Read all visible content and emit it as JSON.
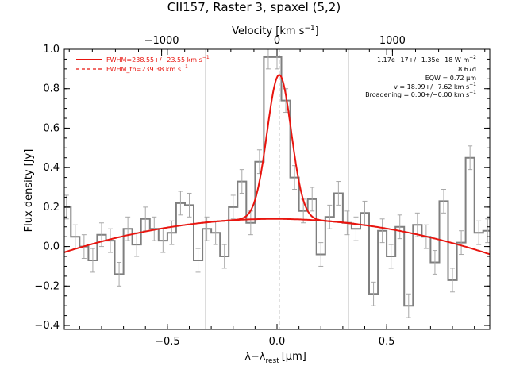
{
  "chart_data": {
    "type": "line",
    "title": "CII157, Raster 3, spaxel (5,2)",
    "xlabel": "λ−λ",
    "xlabel_sub": "rest",
    "xlabel_unit": "[μm]",
    "ylabel": "Flux density [Jy]",
    "top_axis_label": "Velocity [km s",
    "top_axis_label_sup": "−1",
    "top_axis_label_end": "]",
    "xlim": [
      -0.97,
      0.97
    ],
    "ylim": [
      -0.42,
      1.0
    ],
    "x_ticks": [
      -0.5,
      0.0,
      0.5
    ],
    "x_tick_labels": [
      "−0.5",
      "0.0",
      "0.5"
    ],
    "y_ticks": [
      -0.4,
      -0.2,
      0.0,
      0.2,
      0.4,
      0.6,
      0.8,
      1.0
    ],
    "y_tick_labels": [
      "−0.4",
      "−0.2",
      "0.0",
      "0.2",
      "0.4",
      "0.6",
      "0.8",
      "1.0"
    ],
    "top_ticks_kms": [
      -1000,
      0,
      1000
    ],
    "top_tick_labels": [
      "−1000",
      "0",
      "1000"
    ],
    "km_s_per_um": 1900,
    "vlines_x": [
      -0.325,
      0.325
    ],
    "dashed_vline_x": 0.01,
    "legend": {
      "position": "top-left",
      "entries": [
        {
          "label": "FWHM=238.55+/−23.55 km s",
          "sup": "−1",
          "style": "solid",
          "color": "#e8150f"
        },
        {
          "label": "FWHM_th=239.38 km s",
          "sup": "−1",
          "style": "dashed",
          "color": "#e8150f"
        }
      ]
    },
    "annotations": {
      "position": "top-right",
      "lines": [
        {
          "text": "1.17e−17+/−1.35e−18 W m",
          "sup": "−2"
        },
        {
          "text": "8.67σ",
          "sup": ""
        },
        {
          "text": "EQW = 0.72 μm",
          "sup": ""
        },
        {
          "text": "v = 18.99+/−7.62 km s",
          "sup": "−1"
        },
        {
          "text": "Broadening = 0.00+/−0.00 km s",
          "sup": "−1"
        }
      ]
    },
    "colors": {
      "data": "#7f7f7f",
      "fit": "#e8150f",
      "axes": "#000000"
    },
    "spectrum": {
      "style": "histogram-step",
      "x": [
        -0.96,
        -0.92,
        -0.88,
        -0.84,
        -0.8,
        -0.76,
        -0.72,
        -0.68,
        -0.64,
        -0.6,
        -0.56,
        -0.52,
        -0.48,
        -0.44,
        -0.4,
        -0.36,
        -0.32,
        -0.28,
        -0.24,
        -0.2,
        -0.16,
        -0.12,
        -0.08,
        -0.04,
        0.0,
        0.04,
        0.08,
        0.12,
        0.16,
        0.2,
        0.24,
        0.28,
        0.32,
        0.36,
        0.4,
        0.44,
        0.48,
        0.52,
        0.56,
        0.6,
        0.64,
        0.68,
        0.72,
        0.76,
        0.8,
        0.84,
        0.88,
        0.92,
        0.96
      ],
      "y": [
        0.2,
        0.05,
        0.0,
        -0.07,
        0.06,
        0.03,
        -0.14,
        0.09,
        0.01,
        0.14,
        0.09,
        0.03,
        0.07,
        0.22,
        0.21,
        -0.07,
        0.09,
        0.07,
        -0.05,
        0.2,
        0.33,
        0.12,
        0.43,
        0.96,
        0.96,
        0.74,
        0.35,
        0.18,
        0.24,
        -0.04,
        0.15,
        0.27,
        0.12,
        0.09,
        0.17,
        -0.24,
        0.08,
        -0.05,
        0.1,
        -0.3,
        0.11,
        0.05,
        -0.08,
        0.23,
        -0.17,
        0.02,
        0.45,
        0.07,
        0.08
      ],
      "err": [
        0.06,
        0.06,
        0.06,
        0.06,
        0.06,
        0.06,
        0.06,
        0.06,
        0.06,
        0.06,
        0.06,
        0.06,
        0.06,
        0.06,
        0.06,
        0.06,
        0.06,
        0.06,
        0.06,
        0.06,
        0.06,
        0.06,
        0.06,
        0.06,
        0.06,
        0.06,
        0.06,
        0.06,
        0.06,
        0.06,
        0.06,
        0.06,
        0.06,
        0.06,
        0.06,
        0.06,
        0.06,
        0.06,
        0.06,
        0.06,
        0.06,
        0.06,
        0.06,
        0.06,
        0.06,
        0.06,
        0.06,
        0.06,
        0.06
      ]
    },
    "fit": {
      "baseline_quadratic": {
        "c0": 0.14,
        "c1": -0.005,
        "c2": -0.185
      },
      "gaussian": {
        "amplitude": 0.73,
        "center": 0.01,
        "sigma": 0.055
      }
    }
  }
}
